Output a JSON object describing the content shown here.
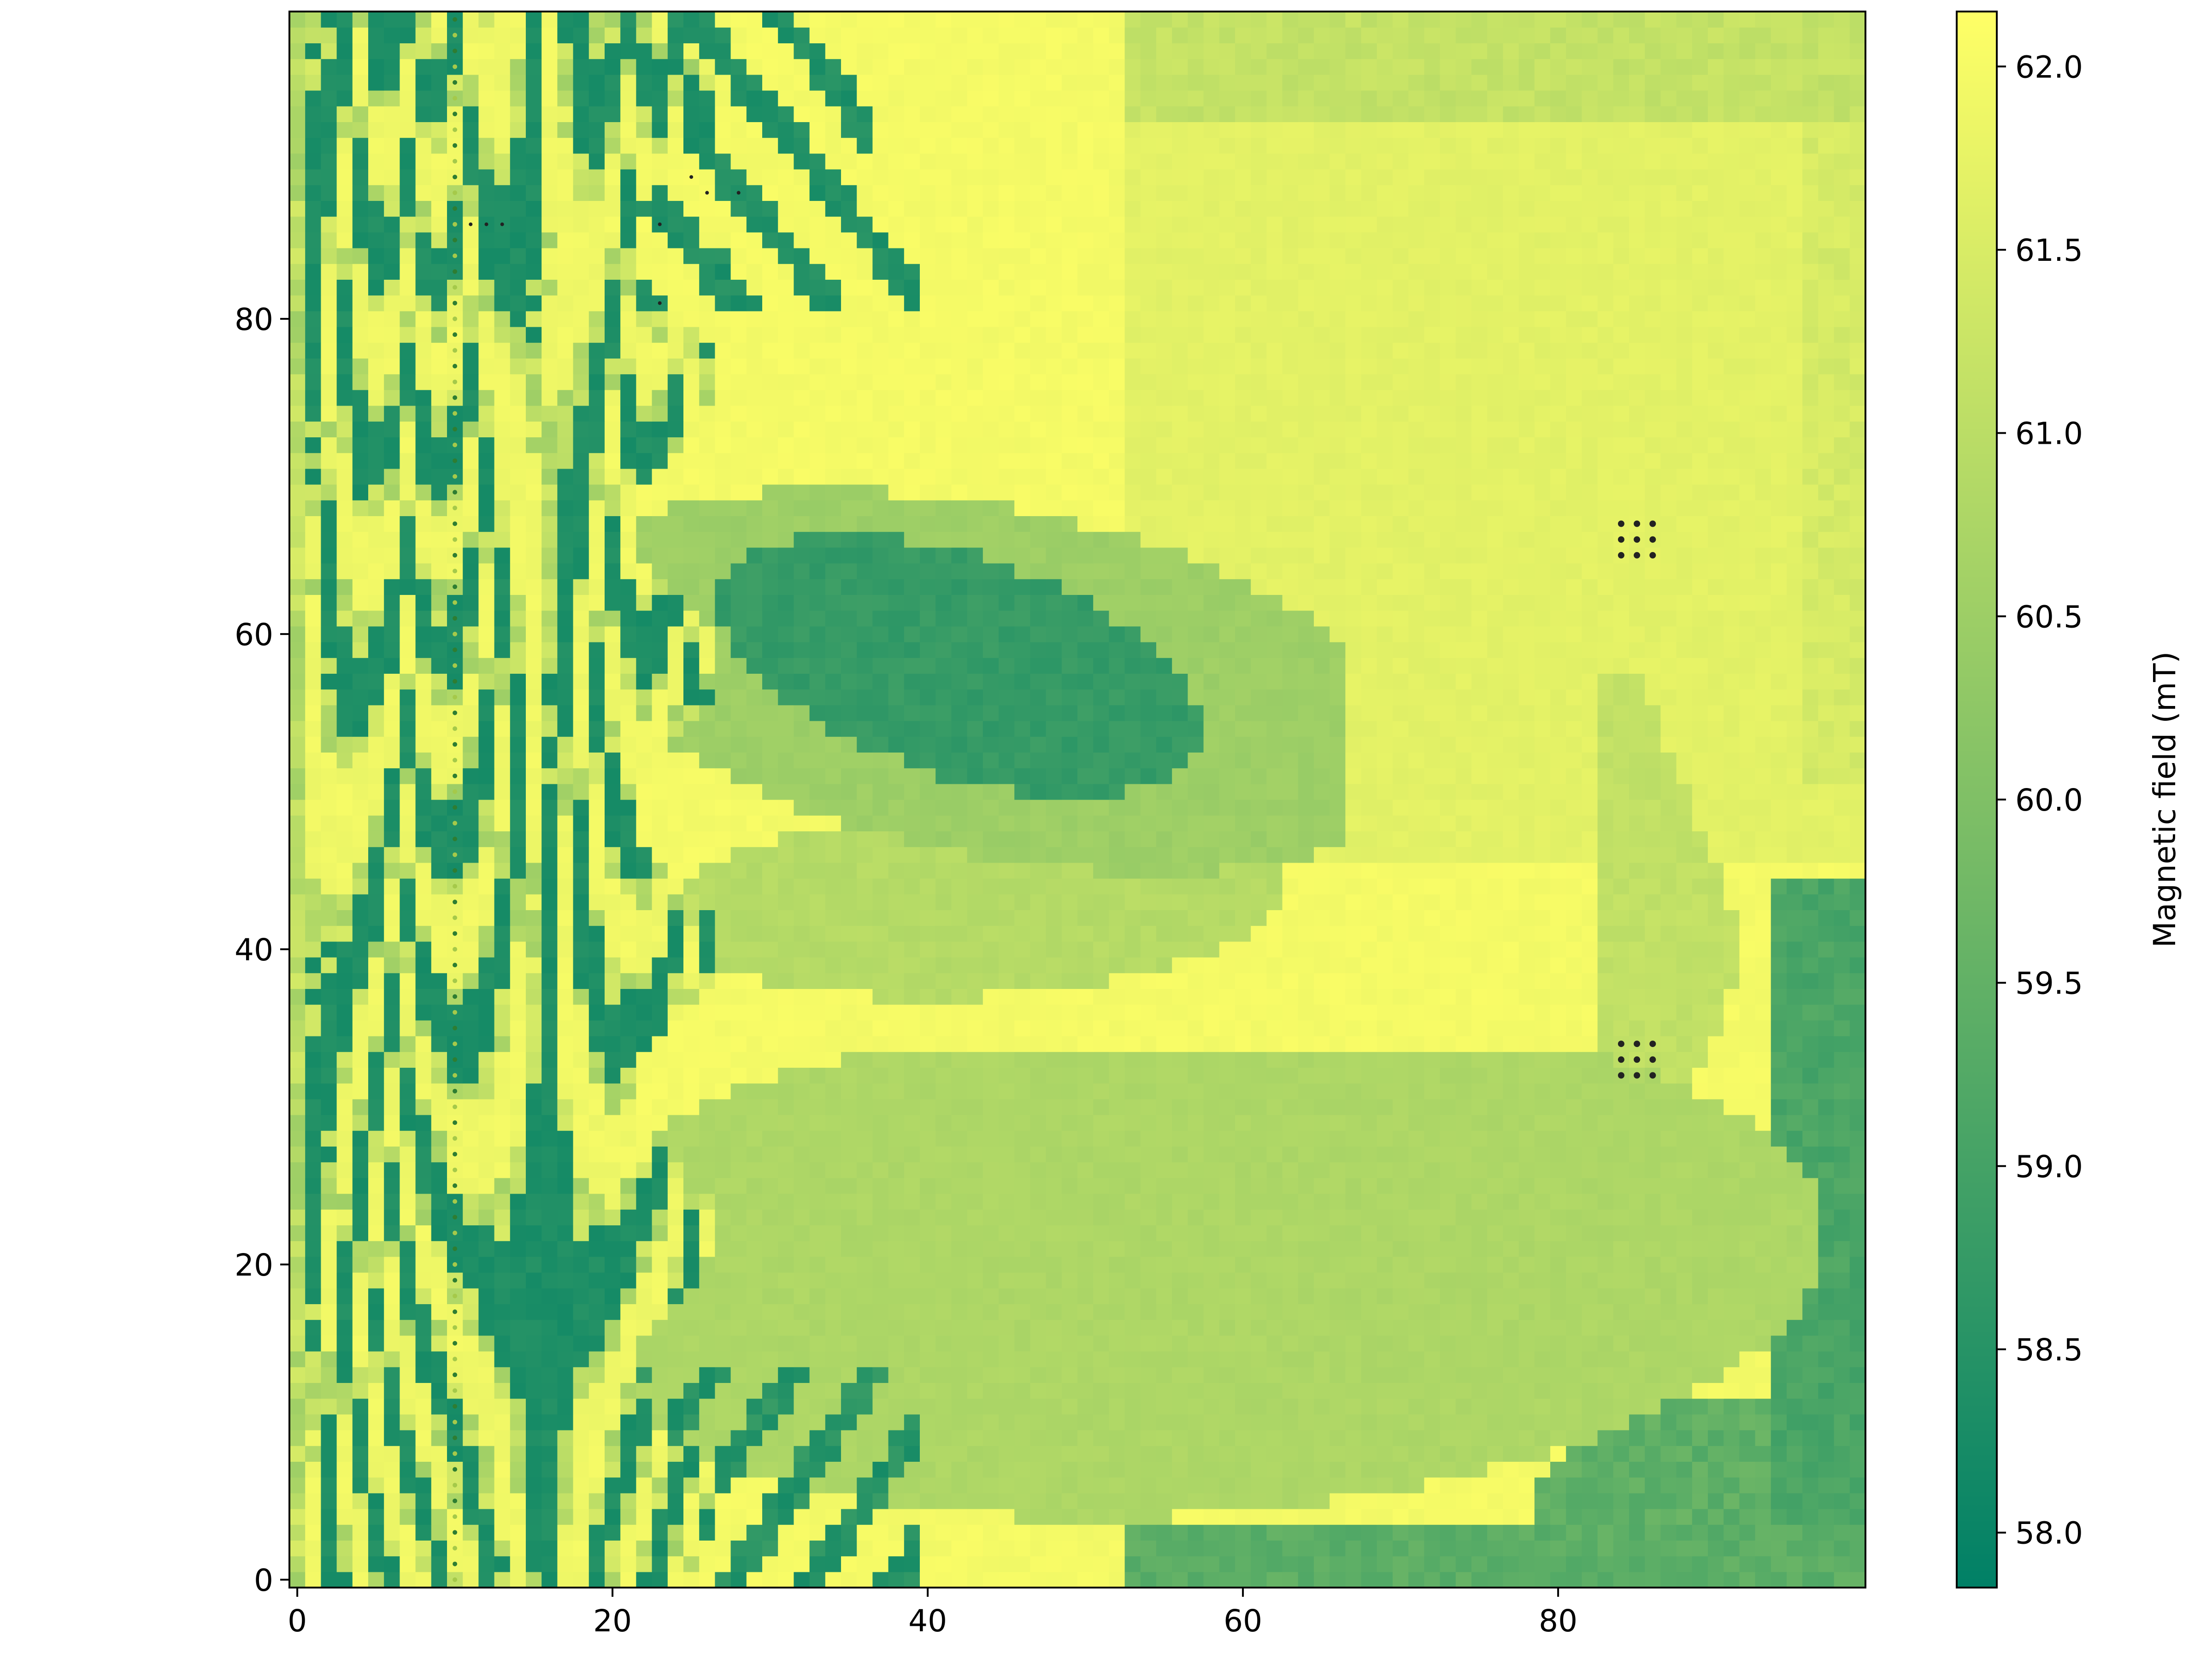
{
  "chart_data": {
    "type": "heatmap",
    "title": "",
    "xlabel": "",
    "ylabel": "",
    "colorbar_label": "Magnetic field (mT)",
    "colormap": "summer_r",
    "colormap_stops": [
      "#008066",
      "#ffff66"
    ],
    "grid": false,
    "xlim": [
      -0.5,
      99.5
    ],
    "ylim": [
      -0.5,
      99.5
    ],
    "x_ticks": [
      0,
      20,
      40,
      60,
      80
    ],
    "x_tick_labels": [
      "0",
      "20",
      "40",
      "60",
      "80"
    ],
    "y_ticks": [
      0,
      20,
      40,
      60,
      80
    ],
    "y_tick_labels": [
      "0",
      "20",
      "40",
      "60",
      "80"
    ],
    "value_range": [
      57.85,
      62.15
    ],
    "colorbar_ticks": [
      58.0,
      58.5,
      59.0,
      59.5,
      60.0,
      60.5,
      61.0,
      61.5,
      62.0
    ],
    "colorbar_tick_labels": [
      "58.0",
      "58.5",
      "59.0",
      "59.5",
      "60.0",
      "60.5",
      "61.0",
      "61.5",
      "62.0"
    ],
    "grid_size": [
      100,
      100
    ],
    "field_description_note": "",
    "regions": {
      "background_high": 61.9,
      "upper_right_field": 61.6,
      "mid_band_field": 61.0,
      "lower_lobe_field": 60.7,
      "dark_lobe_core": 58.6,
      "corner_low": 59.2,
      "striped_zone_low": 58.2,
      "striped_zone_high": 62.0
    },
    "dot_markers": {
      "vertical_line_x": 10,
      "vertical_line_y_range": [
        0,
        99
      ],
      "cluster_upper": {
        "x": [
          84,
          85,
          86
        ],
        "y": [
          65,
          66,
          67
        ]
      },
      "cluster_lower": {
        "x": [
          84,
          85,
          86
        ],
        "y": [
          32,
          33,
          34
        ]
      },
      "scattered": [
        [
          12,
          86
        ],
        [
          13,
          86
        ],
        [
          11,
          86
        ],
        [
          26,
          88
        ],
        [
          28,
          88
        ],
        [
          25,
          89
        ],
        [
          23,
          86
        ],
        [
          23,
          81
        ]
      ]
    }
  }
}
